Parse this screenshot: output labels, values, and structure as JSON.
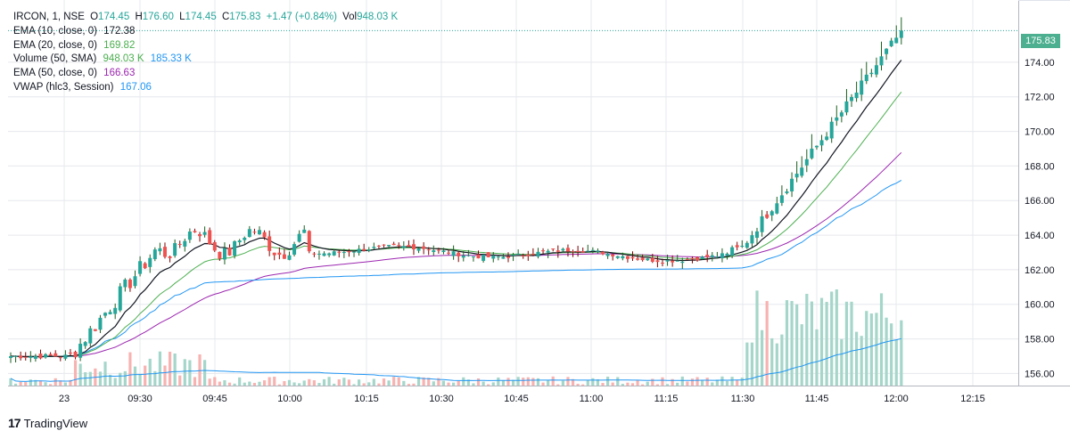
{
  "legend": {
    "symbol": "IRCON, 1, NSE",
    "open_label": "O",
    "open": "174.45",
    "high_label": "H",
    "high": "176.60",
    "low_label": "L",
    "low": "174.45",
    "close_label": "C",
    "close": "175.83",
    "change": "+1.47 (+0.84%)",
    "vol_label": "Vol",
    "vol": "948.03 K",
    "indicators": [
      {
        "label": "EMA (10, close, 0)",
        "value": "172.38",
        "color": "#131722"
      },
      {
        "label": "EMA (20, close, 0)",
        "value": "169.82",
        "color": "#4caf50"
      },
      {
        "label": "Volume (50, SMA)",
        "value": "948.03 K",
        "value2": "185.33 K",
        "color": "#4caf50",
        "color2": "#2196f3"
      },
      {
        "label": "EMA (50, close, 0)",
        "value": "166.63",
        "color": "#9c27b0"
      },
      {
        "label": "VWAP (hlc3, Session)",
        "value": "167.06",
        "color": "#2196f3"
      }
    ]
  },
  "last_price_tag": "175.83",
  "brand": {
    "logo": "17",
    "name": "TradingView"
  },
  "chart_data": {
    "type": "candlestick",
    "symbol": "IRCON",
    "interval": "1",
    "exchange": "NSE",
    "x_tick_labels": [
      "23",
      "09:30",
      "09:45",
      "10:00",
      "10:15",
      "10:30",
      "10:45",
      "11:00",
      "11:15",
      "11:30",
      "11:45",
      "12:00",
      "12:15"
    ],
    "y_tick_labels": [
      "156.00",
      "158.00",
      "160.00",
      "162.00",
      "164.00",
      "166.00",
      "168.00",
      "170.00",
      "172.00",
      "174.00",
      "175.83"
    ],
    "ylim": [
      155.3,
      177.6
    ],
    "colors": {
      "up": "#26a69a",
      "down": "#ef5350",
      "ema10": "#131722",
      "ema20": "#4caf50",
      "ema50": "#9c27b0",
      "vwap": "#2196f3",
      "grid": "#e6e8ed"
    },
    "grid": true,
    "last_close": 175.83
  }
}
